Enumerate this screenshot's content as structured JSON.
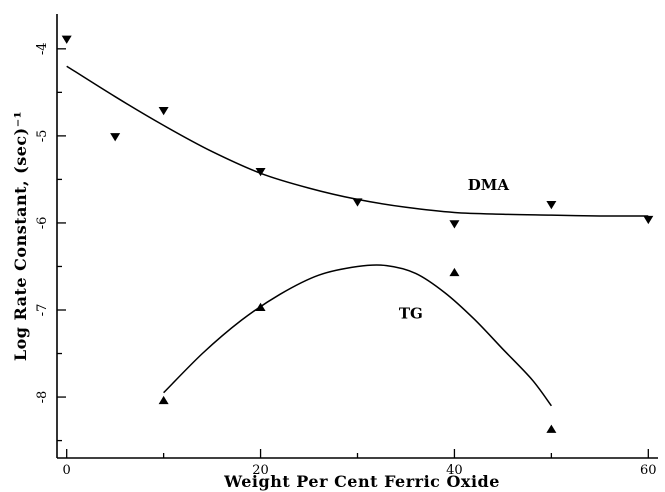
{
  "chart_data": {
    "type": "scatter",
    "xlabel": "Weight Per Cent Ferric Oxide",
    "ylabel": "Log Rate Constant, (sec)⁻¹",
    "xlim": [
      -1,
      61
    ],
    "ylim": [
      -8.7,
      -3.6
    ],
    "x_ticks": [
      0,
      20,
      40,
      60
    ],
    "y_ticks": [
      -4,
      -5,
      -6,
      -7,
      -8
    ],
    "grid": false,
    "legend": "none",
    "series": [
      {
        "name": "DMA",
        "marker": "triangle-down",
        "points": [
          {
            "x": 0,
            "y": -3.88
          },
          {
            "x": 5,
            "y": -5.0
          },
          {
            "x": 10,
            "y": -4.7
          },
          {
            "x": 20,
            "y": -5.4
          },
          {
            "x": 30,
            "y": -5.75
          },
          {
            "x": 40,
            "y": -6.0
          },
          {
            "x": 50,
            "y": -5.78
          },
          {
            "x": 60,
            "y": -5.95
          }
        ],
        "fit_curve": [
          {
            "x": 0,
            "y": -4.2
          },
          {
            "x": 5,
            "y": -4.55
          },
          {
            "x": 10,
            "y": -4.88
          },
          {
            "x": 15,
            "y": -5.18
          },
          {
            "x": 20,
            "y": -5.43
          },
          {
            "x": 25,
            "y": -5.6
          },
          {
            "x": 30,
            "y": -5.73
          },
          {
            "x": 35,
            "y": -5.82
          },
          {
            "x": 40,
            "y": -5.88
          },
          {
            "x": 45,
            "y": -5.9
          },
          {
            "x": 50,
            "y": -5.91
          },
          {
            "x": 55,
            "y": -5.92
          },
          {
            "x": 60,
            "y": -5.92
          }
        ]
      },
      {
        "name": "TG",
        "marker": "triangle-up",
        "points": [
          {
            "x": 10,
            "y": -8.05
          },
          {
            "x": 20,
            "y": -6.98
          },
          {
            "x": 40,
            "y": -6.58
          },
          {
            "x": 50,
            "y": -8.38
          }
        ],
        "fit_curve": [
          {
            "x": 10,
            "y": -7.95
          },
          {
            "x": 14,
            "y": -7.5
          },
          {
            "x": 18,
            "y": -7.12
          },
          {
            "x": 22,
            "y": -6.82
          },
          {
            "x": 26,
            "y": -6.6
          },
          {
            "x": 30,
            "y": -6.5
          },
          {
            "x": 33,
            "y": -6.49
          },
          {
            "x": 36,
            "y": -6.58
          },
          {
            "x": 39,
            "y": -6.8
          },
          {
            "x": 42,
            "y": -7.1
          },
          {
            "x": 45,
            "y": -7.45
          },
          {
            "x": 48,
            "y": -7.8
          },
          {
            "x": 50,
            "y": -8.1
          }
        ]
      }
    ]
  }
}
